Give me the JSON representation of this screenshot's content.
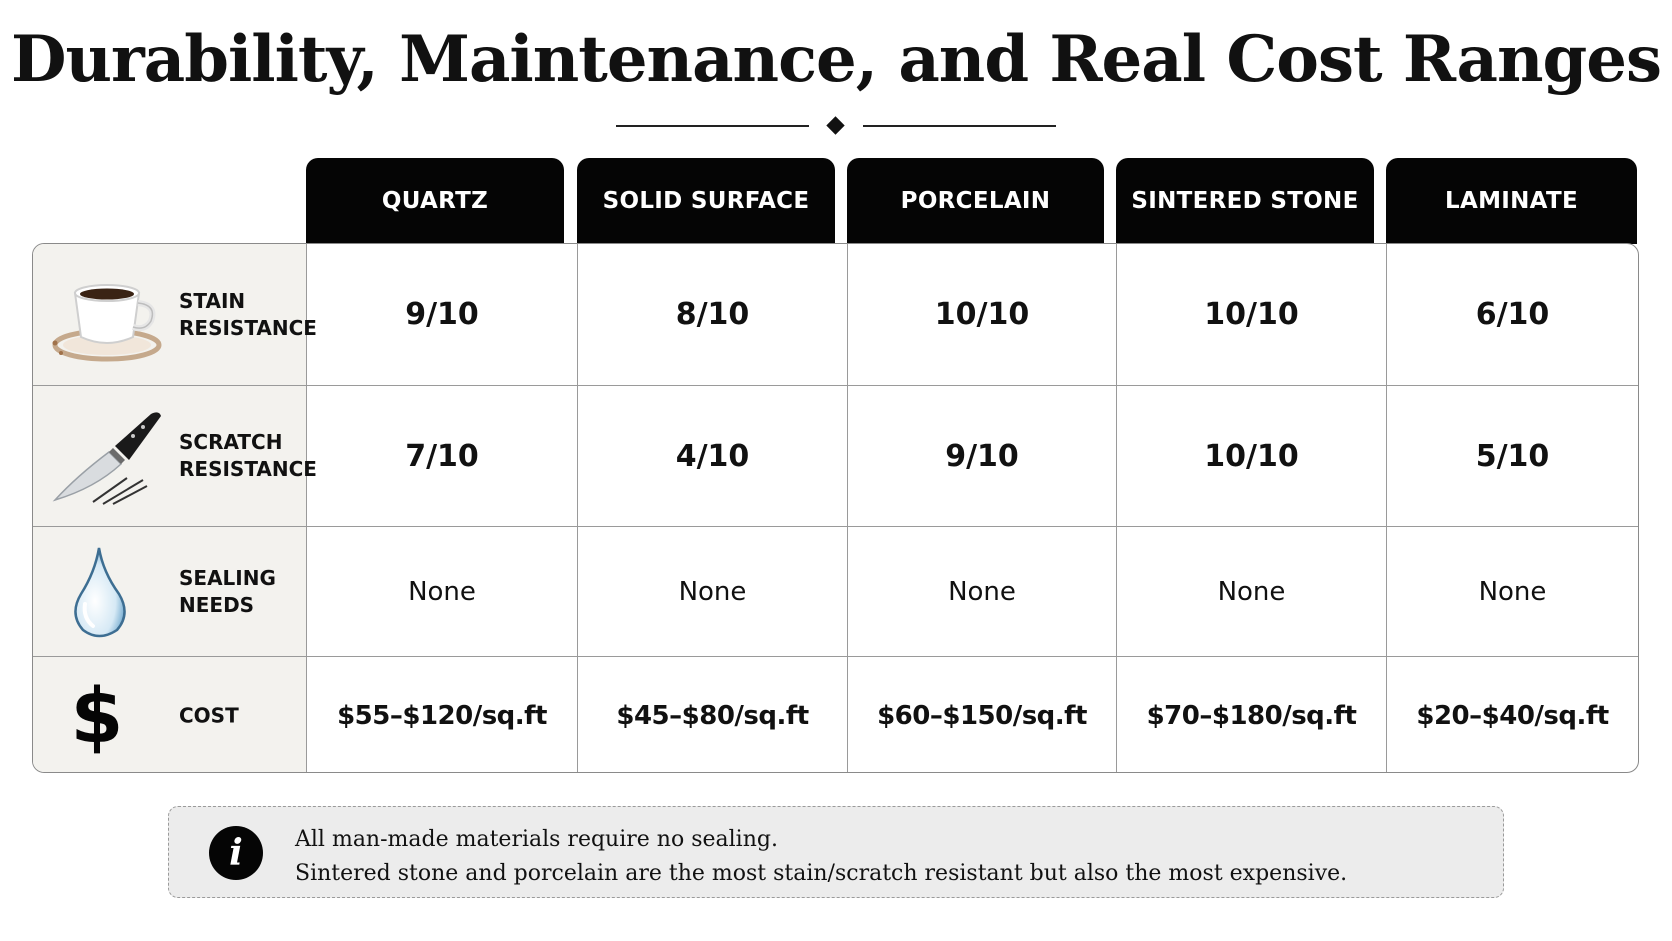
{
  "title": "Durability, Maintenance, and Real Cost Ranges",
  "columns": [
    "QUARTZ",
    "SOLID SURFACE",
    "PORCELAIN",
    "SINTERED STONE",
    "LAMINATE"
  ],
  "rows": [
    {
      "label_line1": "STAIN",
      "label_line2": "RESISTANCE",
      "icon": "coffee-cup-icon",
      "values": [
        "9/10",
        "8/10",
        "10/10",
        "10/10",
        "6/10"
      ]
    },
    {
      "label_line1": "SCRATCH",
      "label_line2": "RESISTANCE",
      "icon": "knife-icon",
      "values": [
        "7/10",
        "4/10",
        "9/10",
        "10/10",
        "5/10"
      ]
    },
    {
      "label_line1": "SEALING",
      "label_line2": "NEEDS",
      "icon": "water-drop-icon",
      "values": [
        "None",
        "None",
        "None",
        "None",
        "None"
      ]
    },
    {
      "label_line1": "COST",
      "label_line2": "",
      "icon": "dollar-icon",
      "values": [
        "$55–$120/sq.ft",
        "$45–$80/sq.ft",
        "$60–$150/sq.ft",
        "$70–$180/sq.ft",
        "$20–$40/sq.ft"
      ]
    }
  ],
  "note": {
    "icon": "info-icon",
    "icon_glyph": "i",
    "line1": "All man-made materials require no sealing.",
    "line2": "Sintered stone and porcelain are the most stain/scratch resistant but also the most expensive."
  },
  "dollar_glyph": "$"
}
